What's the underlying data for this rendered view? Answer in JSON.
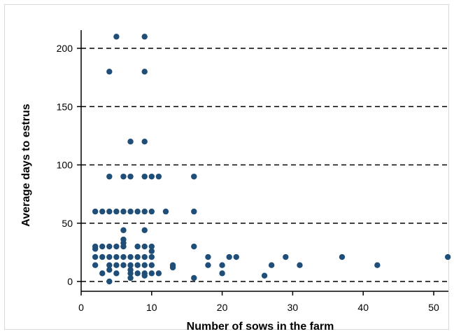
{
  "chart_data": {
    "type": "scatter",
    "title": "",
    "xlabel": "Number of sows in the farm",
    "ylabel": "Average days to estrus",
    "xlim": [
      0,
      52
    ],
    "ylim": [
      0,
      210
    ],
    "x_ticks": [
      "0",
      "10",
      "20",
      "30",
      "40",
      "50"
    ],
    "y_ticks": [
      "0",
      "50",
      "100",
      "150",
      "200"
    ],
    "grid": "horizontal dashed",
    "marker_color": "#1f4e79",
    "points": [
      {
        "x": 5,
        "y": 210
      },
      {
        "x": 9,
        "y": 210
      },
      {
        "x": 4,
        "y": 180
      },
      {
        "x": 9,
        "y": 180
      },
      {
        "x": 7,
        "y": 120
      },
      {
        "x": 9,
        "y": 120
      },
      {
        "x": 4,
        "y": 90
      },
      {
        "x": 6,
        "y": 90
      },
      {
        "x": 7,
        "y": 90
      },
      {
        "x": 9,
        "y": 90
      },
      {
        "x": 10,
        "y": 90
      },
      {
        "x": 11,
        "y": 90
      },
      {
        "x": 16,
        "y": 90
      },
      {
        "x": 2,
        "y": 60
      },
      {
        "x": 3,
        "y": 60
      },
      {
        "x": 4,
        "y": 60
      },
      {
        "x": 5,
        "y": 60
      },
      {
        "x": 6,
        "y": 60
      },
      {
        "x": 7,
        "y": 60
      },
      {
        "x": 8,
        "y": 60
      },
      {
        "x": 9,
        "y": 60
      },
      {
        "x": 10,
        "y": 60
      },
      {
        "x": 12,
        "y": 60
      },
      {
        "x": 16,
        "y": 60
      },
      {
        "x": 6,
        "y": 44
      },
      {
        "x": 9,
        "y": 44
      },
      {
        "x": 6,
        "y": 36
      },
      {
        "x": 6,
        "y": 33
      },
      {
        "x": 2,
        "y": 30
      },
      {
        "x": 3,
        "y": 30
      },
      {
        "x": 4,
        "y": 30
      },
      {
        "x": 5,
        "y": 30
      },
      {
        "x": 6,
        "y": 30
      },
      {
        "x": 8,
        "y": 30
      },
      {
        "x": 9,
        "y": 30
      },
      {
        "x": 10,
        "y": 30
      },
      {
        "x": 16,
        "y": 30
      },
      {
        "x": 2,
        "y": 28
      },
      {
        "x": 10,
        "y": 26
      },
      {
        "x": 2,
        "y": 21
      },
      {
        "x": 3,
        "y": 21
      },
      {
        "x": 4,
        "y": 21
      },
      {
        "x": 5,
        "y": 21
      },
      {
        "x": 6,
        "y": 21
      },
      {
        "x": 7,
        "y": 21
      },
      {
        "x": 8,
        "y": 21
      },
      {
        "x": 9,
        "y": 21
      },
      {
        "x": 10,
        "y": 21
      },
      {
        "x": 18,
        "y": 21
      },
      {
        "x": 21,
        "y": 21
      },
      {
        "x": 22,
        "y": 21
      },
      {
        "x": 29,
        "y": 21
      },
      {
        "x": 37,
        "y": 21
      },
      {
        "x": 52,
        "y": 21
      },
      {
        "x": 2,
        "y": 14
      },
      {
        "x": 4,
        "y": 14
      },
      {
        "x": 5,
        "y": 14
      },
      {
        "x": 6,
        "y": 14
      },
      {
        "x": 7,
        "y": 14
      },
      {
        "x": 8,
        "y": 14
      },
      {
        "x": 9,
        "y": 14
      },
      {
        "x": 10,
        "y": 14
      },
      {
        "x": 13,
        "y": 14
      },
      {
        "x": 18,
        "y": 14
      },
      {
        "x": 20,
        "y": 14
      },
      {
        "x": 27,
        "y": 14
      },
      {
        "x": 31,
        "y": 14
      },
      {
        "x": 42,
        "y": 14
      },
      {
        "x": 13,
        "y": 12
      },
      {
        "x": 4,
        "y": 10
      },
      {
        "x": 7,
        "y": 10
      },
      {
        "x": 3,
        "y": 7
      },
      {
        "x": 5,
        "y": 7
      },
      {
        "x": 7,
        "y": 7
      },
      {
        "x": 8,
        "y": 7
      },
      {
        "x": 9,
        "y": 7
      },
      {
        "x": 10,
        "y": 7
      },
      {
        "x": 11,
        "y": 7
      },
      {
        "x": 20,
        "y": 7
      },
      {
        "x": 9,
        "y": 5
      },
      {
        "x": 26,
        "y": 5
      },
      {
        "x": 7,
        "y": 3
      },
      {
        "x": 16,
        "y": 3
      },
      {
        "x": 4,
        "y": 0
      }
    ]
  }
}
